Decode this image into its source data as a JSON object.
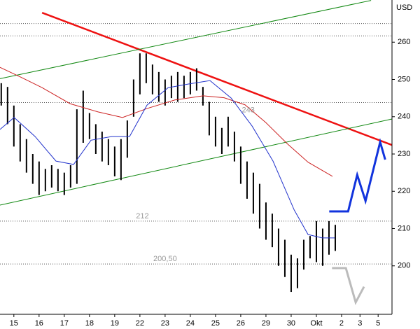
{
  "chart_data": {
    "type": "range_bar",
    "y_axis_label": "USD",
    "xlim": [
      -0.55,
      15.0
    ],
    "ylim": [
      187,
      270
    ],
    "yticks": [
      200,
      210,
      220,
      230,
      240,
      250,
      260
    ],
    "xticks": [
      {
        "value": 0,
        "label": "15"
      },
      {
        "value": 1,
        "label": "16"
      },
      {
        "value": 2,
        "label": "17"
      },
      {
        "value": 3,
        "label": "18"
      },
      {
        "value": 4,
        "label": "19"
      },
      {
        "value": 5,
        "label": "22"
      },
      {
        "value": 6,
        "label": "23"
      },
      {
        "value": 7,
        "label": "24"
      },
      {
        "value": 8,
        "label": "25"
      },
      {
        "value": 9,
        "label": "26"
      },
      {
        "value": 10,
        "label": "29"
      },
      {
        "value": 11,
        "label": "30"
      },
      {
        "value": 12,
        "label": "Okt"
      },
      {
        "value": 13,
        "label": "2"
      },
      {
        "value": 13.73,
        "label": "3"
      },
      {
        "value": 14.45,
        "label": "5"
      }
    ],
    "price": {
      "color": "#000000",
      "x": [
        -0.5,
        -0.25,
        0,
        0.25,
        0.5,
        0.75,
        1,
        1.25,
        1.5,
        1.75,
        2,
        2.25,
        2.5,
        2.75,
        3,
        3.25,
        3.5,
        3.75,
        4,
        4.25,
        4.5,
        4.75,
        5,
        5.25,
        5.5,
        5.75,
        6,
        6.25,
        6.5,
        6.75,
        7,
        7.25,
        7.5,
        7.75,
        8,
        8.25,
        8.5,
        8.75,
        9,
        9.25,
        9.5,
        9.75,
        10,
        10.25,
        10.5,
        10.75,
        11,
        11.25,
        11.5,
        11.75,
        12,
        12.25,
        12.5,
        12.75
      ],
      "low": [
        243,
        238,
        232,
        228,
        225,
        222,
        219,
        220,
        221,
        220,
        219,
        221,
        222,
        233,
        234,
        230,
        228,
        227,
        224,
        223,
        229,
        240,
        246,
        249,
        246,
        244,
        243,
        245,
        244,
        245,
        246,
        247,
        243,
        235,
        232,
        230,
        232,
        228,
        222,
        218,
        214,
        210,
        207,
        205,
        200,
        197,
        193,
        194,
        199,
        202,
        201,
        200,
        203,
        204
      ],
      "high": [
        249,
        248,
        243,
        238,
        234,
        230,
        228,
        226,
        227,
        226,
        225,
        227,
        242,
        247,
        241,
        238,
        236,
        234,
        232,
        234,
        239,
        250,
        257,
        257,
        254,
        252,
        250,
        251,
        252,
        251,
        252,
        253,
        248,
        244,
        240,
        237,
        240,
        236,
        232,
        228,
        225,
        222,
        217,
        214,
        210,
        207,
        203,
        202,
        207,
        208,
        212,
        210,
        212,
        211
      ]
    },
    "moving_averages": [
      {
        "color": "#cc2222",
        "x": [
          -0.55,
          0.28,
          1.12,
          2.23,
          3.34,
          4.31,
          5.28,
          6.39,
          7.51,
          8.34,
          9.17,
          10.0,
          10.84,
          11.67,
          12.64
        ],
        "values": [
          253.25,
          250.6,
          247.8,
          243.5,
          241.3,
          239.8,
          242.2,
          244.5,
          245.6,
          245.1,
          243.2,
          238.4,
          232.8,
          227.8,
          224.0
        ]
      },
      {
        "color": "#2233cc",
        "x": [
          -0.55,
          0.01,
          0.84,
          1.67,
          2.37,
          3.06,
          3.89,
          4.59,
          5.28,
          6.12,
          6.95,
          7.78,
          8.62,
          9.45,
          10.28,
          11.12,
          11.67,
          12.23,
          12.73
        ],
        "values": [
          236.6,
          239.8,
          234.7,
          228.1,
          227.2,
          233.7,
          234.7,
          234.7,
          243.1,
          247.8,
          248.8,
          249.7,
          245.0,
          237.5,
          228.1,
          215.0,
          208.4,
          207.5,
          207.5
        ]
      }
    ],
    "trendlines": [
      {
        "color": "#ee1111",
        "x": [
          1.12,
          15.0
        ],
        "values": [
          267.9,
          232.4
        ]
      },
      {
        "color": "#118811",
        "x": [
          -0.55,
          14.17
        ],
        "values": [
          250.2,
          271.2
        ]
      },
      {
        "color": "#118811",
        "x": [
          -0.55,
          15.0
        ],
        "values": [
          216.3,
          239.4
        ]
      }
    ],
    "projections": [
      {
        "color": "#1133dd",
        "x": [
          12.51,
          13.26,
          13.62,
          13.95,
          14.53,
          14.73
        ],
        "values": [
          214.6,
          214.6,
          224.4,
          217.4,
          233.2,
          228.5
        ]
      },
      {
        "color": "#bbbbbb",
        "x": [
          12.62,
          13.17,
          13.56,
          13.89
        ],
        "values": [
          199.4,
          199.4,
          190.2,
          194.4
        ]
      }
    ],
    "levels": [
      {
        "value": 265
      },
      {
        "value": 261.7
      },
      {
        "value": 243.8
      },
      {
        "value": 212,
        "label": "212",
        "label_x": 5.1
      },
      {
        "value": 200.5,
        "label": "200,50",
        "label_x": 6.0
      }
    ],
    "annotations": [
      {
        "text": "243",
        "x": 9.3,
        "y": 241.7
      }
    ]
  }
}
